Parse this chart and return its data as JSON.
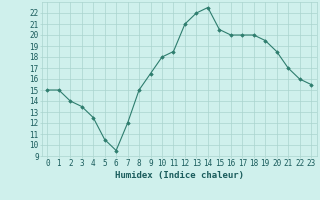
{
  "x": [
    0,
    1,
    2,
    3,
    4,
    5,
    6,
    7,
    8,
    9,
    10,
    11,
    12,
    13,
    14,
    15,
    16,
    17,
    18,
    19,
    20,
    21,
    22,
    23
  ],
  "y": [
    15,
    15,
    14,
    13.5,
    12.5,
    10.5,
    9.5,
    12,
    15,
    16.5,
    18,
    18.5,
    21,
    22,
    22.5,
    20.5,
    20,
    20,
    20,
    19.5,
    18.5,
    17,
    16,
    15.5
  ],
  "line_color": "#2e7d6e",
  "marker": "D",
  "marker_size": 1.8,
  "line_width": 0.8,
  "xlabel": "Humidex (Indice chaleur)",
  "xlim": [
    -0.5,
    23.5
  ],
  "ylim": [
    9,
    23
  ],
  "xticks": [
    0,
    1,
    2,
    3,
    4,
    5,
    6,
    7,
    8,
    9,
    10,
    11,
    12,
    13,
    14,
    15,
    16,
    17,
    18,
    19,
    20,
    21,
    22,
    23
  ],
  "yticks": [
    9,
    10,
    11,
    12,
    13,
    14,
    15,
    16,
    17,
    18,
    19,
    20,
    21,
    22
  ],
  "background_color": "#cff0ec",
  "grid_color": "#aad4ce",
  "xlabel_fontsize": 6.5,
  "tick_fontsize": 5.5,
  "label_color": "#1a5c5c"
}
